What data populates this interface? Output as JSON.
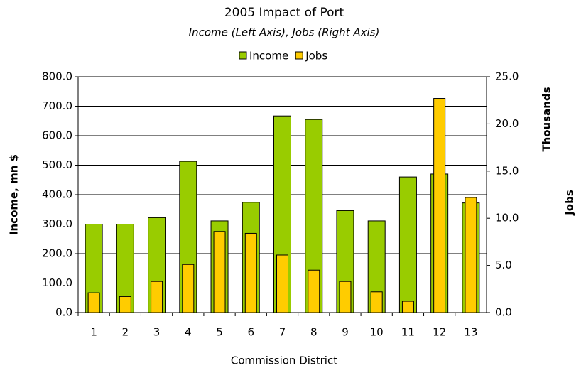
{
  "chart_data": {
    "type": "bar",
    "title": "2005 Impact of Port",
    "subtitle": "Income (Left Axis), Jobs (Right Axis)",
    "xlabel": "Commission District",
    "ylabel": "Income, mn $",
    "y2_units": "Thousands",
    "y2label": "Jobs",
    "legend": "top",
    "grid": true,
    "categories": [
      "1",
      "2",
      "3",
      "4",
      "5",
      "6",
      "7",
      "8",
      "9",
      "10",
      "11",
      "12",
      "13"
    ],
    "series": [
      {
        "name": "Income",
        "color": "#99cc00",
        "values": [
          300,
          300,
          322,
          513,
          311,
          374,
          667,
          655,
          346,
          311,
          460,
          470,
          372
        ]
      },
      {
        "name": "Jobs",
        "color": "#ffcc00",
        "axis": "y2",
        "values": [
          2.1,
          1.7,
          3.3,
          5.1,
          8.6,
          8.4,
          6.1,
          4.5,
          3.3,
          2.2,
          1.2,
          22.7,
          12.2
        ]
      }
    ],
    "ylim": [
      0,
      800
    ],
    "yticks": [
      {
        "value": 0,
        "label": "0.0"
      },
      {
        "value": 100,
        "label": "100.0"
      },
      {
        "value": 200,
        "label": "200.0"
      },
      {
        "value": 300,
        "label": "300.0"
      },
      {
        "value": 400,
        "label": "400.0"
      },
      {
        "value": 500,
        "label": "500.0"
      },
      {
        "value": 600,
        "label": "600.0"
      },
      {
        "value": 700,
        "label": "700.0"
      },
      {
        "value": 800,
        "label": "800.0"
      }
    ],
    "y2lim": [
      0,
      25
    ],
    "y2ticks": [
      {
        "value": 0,
        "label": "0.0"
      },
      {
        "value": 5,
        "label": "5.0"
      },
      {
        "value": 10,
        "label": "10.0"
      },
      {
        "value": 15,
        "label": "15.0"
      },
      {
        "value": 20,
        "label": "20.0"
      },
      {
        "value": 25,
        "label": "25.0"
      }
    ]
  }
}
